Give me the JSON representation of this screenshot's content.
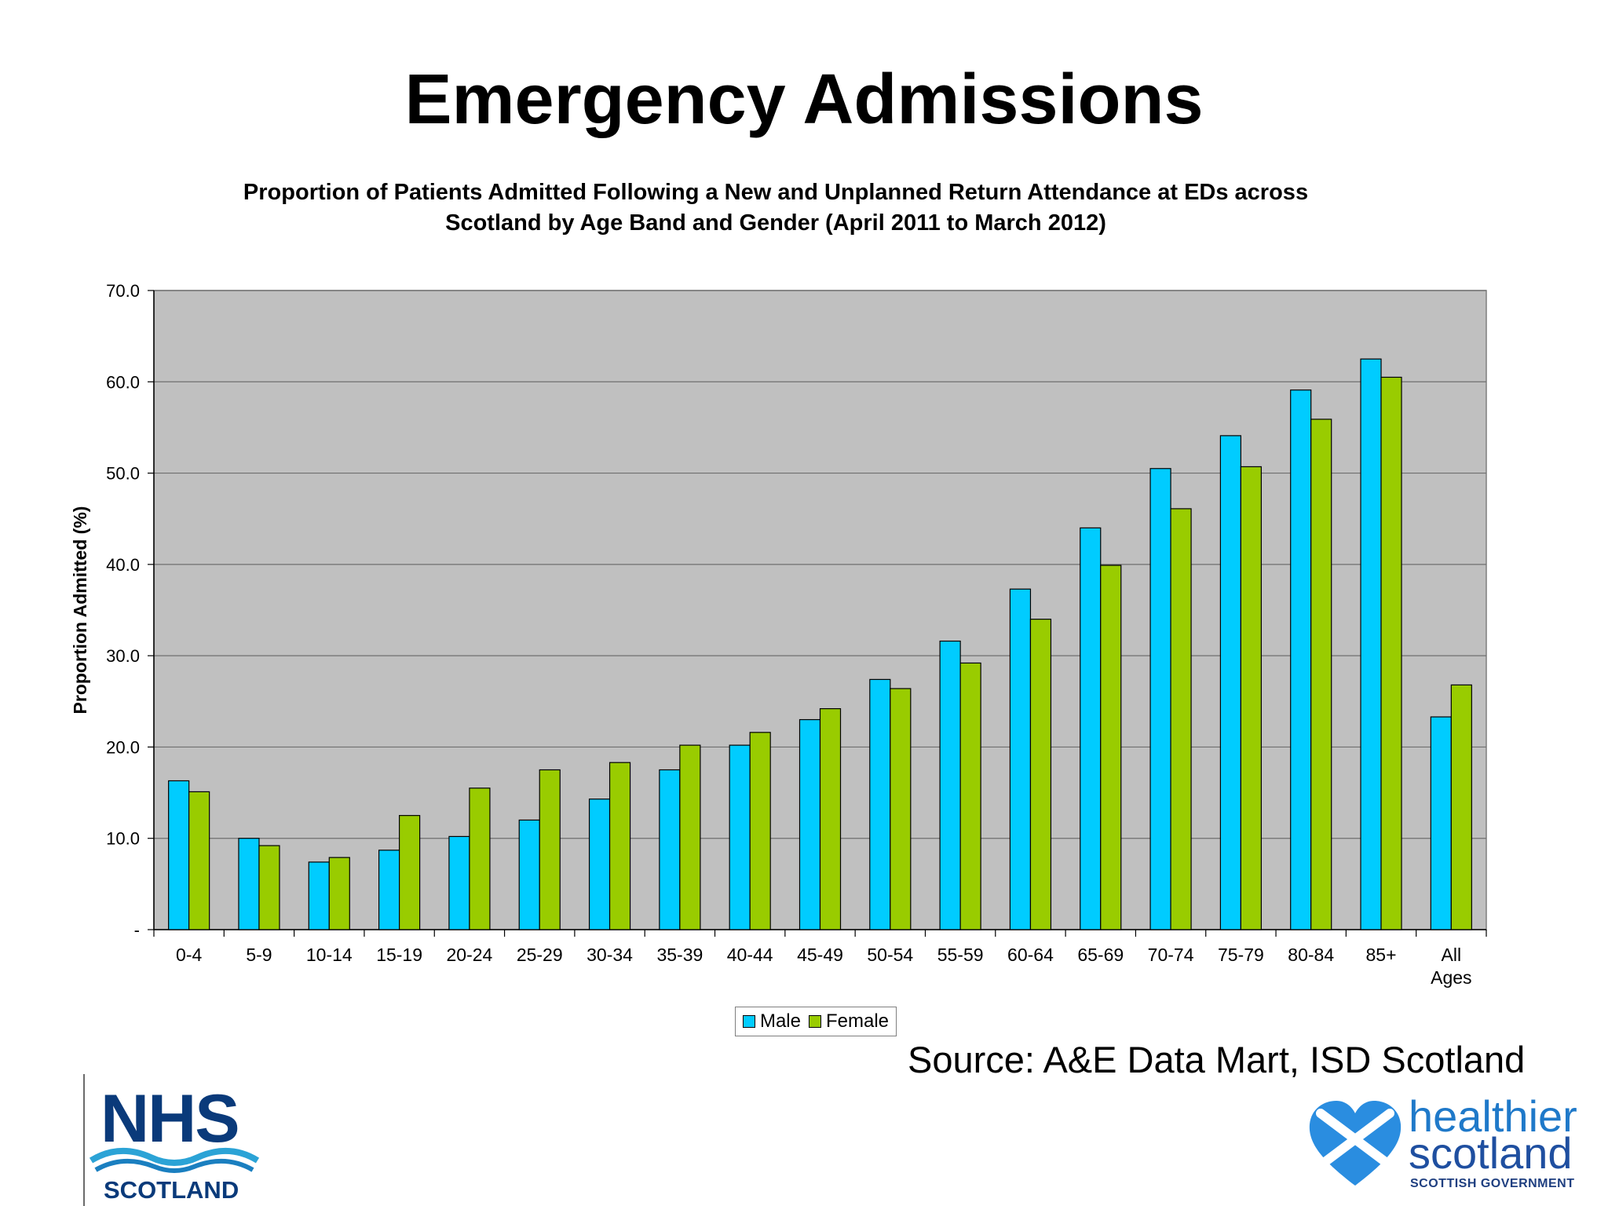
{
  "slide": {
    "title": "Emergency Admissions",
    "source": "Source:  A&E Data Mart, ISD Scotland"
  },
  "logos": {
    "nhs": {
      "main": "NHS",
      "sub": "SCOTLAND"
    },
    "healthier_scotland": {
      "line1": "healthier",
      "line2": "scotland",
      "line3": "SCOTTISH GOVERNMENT"
    }
  },
  "chart_data": {
    "type": "bar",
    "title_lines": [
      "Proportion of Patients Admitted Following a New and Unplanned Return Attendance at EDs across",
      "Scotland by Age Band and Gender (April 2011 to March 2012)"
    ],
    "xlabel": "",
    "ylabel": "Proportion Admitted (%)",
    "ylim": [
      0,
      70
    ],
    "yticks": [
      {
        "value": 0,
        "label": "-"
      },
      {
        "value": 10,
        "label": "10.0"
      },
      {
        "value": 20,
        "label": "20.0"
      },
      {
        "value": 30,
        "label": "30.0"
      },
      {
        "value": 40,
        "label": "40.0"
      },
      {
        "value": 50,
        "label": "50.0"
      },
      {
        "value": 60,
        "label": "60.0"
      },
      {
        "value": 70,
        "label": "70.0"
      }
    ],
    "grid": true,
    "legend_position": "bottom",
    "plot_background": "#c0c0c0",
    "categories": [
      "0-4",
      "5-9",
      "10-14",
      "15-19",
      "20-24",
      "25-29",
      "30-34",
      "35-39",
      "40-44",
      "45-49",
      "50-54",
      "55-59",
      "60-64",
      "65-69",
      "70-74",
      "75-79",
      "80-84",
      "85+",
      "All Ages"
    ],
    "series": [
      {
        "name": "Male",
        "color": "#00ccff",
        "values": [
          16.3,
          10.0,
          7.4,
          8.7,
          10.2,
          12.0,
          14.3,
          17.5,
          20.2,
          23.0,
          27.4,
          31.6,
          37.3,
          44.0,
          50.5,
          54.1,
          59.1,
          62.5,
          23.3
        ]
      },
      {
        "name": "Female",
        "color": "#99cc00",
        "values": [
          15.1,
          9.2,
          7.9,
          12.5,
          15.5,
          17.5,
          18.3,
          20.2,
          21.6,
          24.2,
          26.4,
          29.2,
          34.0,
          39.9,
          46.1,
          50.7,
          55.9,
          60.5,
          26.8
        ]
      }
    ]
  }
}
